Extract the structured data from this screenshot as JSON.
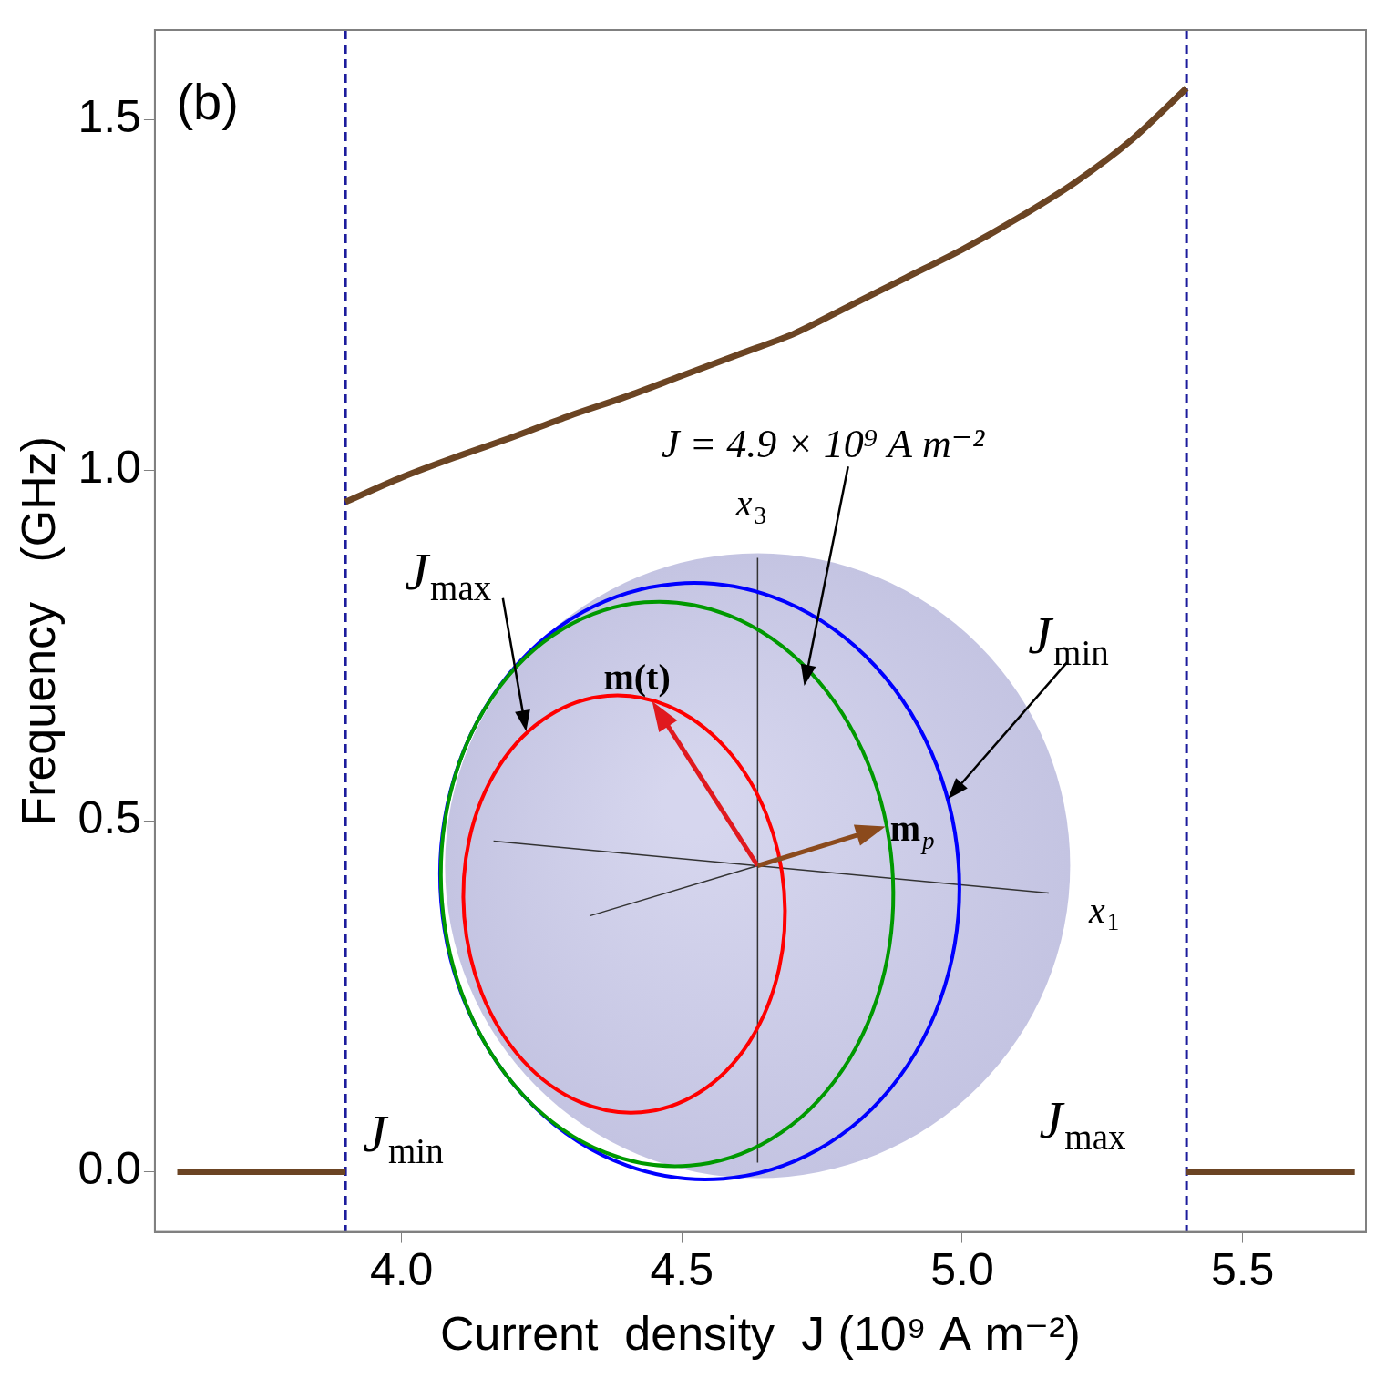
{
  "chart_data": {
    "type": "line",
    "panel_label": "(b)",
    "x_label": "Current  density  J (10⁹ A m⁻²)",
    "y_label": "Frequency   (GHz)",
    "x": [
      3.6,
      3.9,
      3.9,
      3.9,
      4.0,
      4.1,
      4.2,
      4.3,
      4.4,
      4.5,
      4.6,
      4.7,
      4.8,
      4.9,
      5.0,
      5.1,
      5.2,
      5.3,
      5.4,
      5.4,
      5.4,
      5.7
    ],
    "values": [
      0,
      0,
      null,
      0.955,
      0.99,
      1.02,
      1.048,
      1.078,
      1.105,
      1.135,
      1.165,
      1.195,
      1.235,
      1.275,
      1.315,
      1.36,
      1.41,
      1.47,
      1.545,
      null,
      0,
      0
    ],
    "color": "#6b4423",
    "xlim": [
      3.56,
      5.72
    ],
    "ylim": [
      -0.086,
      1.628
    ],
    "xticks": [
      {
        "value": 4,
        "label": "4.0"
      },
      4.5,
      {
        "value": 5,
        "label": "5.0"
      },
      5.5
    ],
    "yticks": [
      {
        "value": 0,
        "label": "0.0"
      },
      0.5,
      {
        "value": 1,
        "label": "1.0"
      },
      1.5
    ],
    "grid": false,
    "thresholds": [
      {
        "x": 3.9,
        "label": {
          "text": "J",
          "sub": "min"
        },
        "color": "#1c1c9c",
        "line_style": "dashed"
      },
      {
        "x": 5.4,
        "label": {
          "text": "J",
          "sub": "max"
        },
        "color": "#1c1c9c",
        "line_style": "dashed"
      }
    ],
    "inset": {
      "axes_labels": [
        {
          "text": "x",
          "sub": "3"
        },
        {
          "text": "x",
          "sub": "1"
        }
      ],
      "orbits": [
        {
          "label": {
            "text": "J",
            "sub": "min"
          },
          "color": "#0000ff"
        },
        {
          "label": "J = 4.9 × 10⁹ A m⁻²",
          "color": "#009900"
        },
        {
          "label": {
            "text": "J",
            "sub": "max"
          },
          "color": "#ff0000"
        }
      ],
      "vectors": [
        {
          "label": "m(t)",
          "color": "#e0191e"
        },
        {
          "label": {
            "text": "m",
            "sub": "p"
          },
          "color": "#8b4a1c"
        }
      ]
    }
  }
}
